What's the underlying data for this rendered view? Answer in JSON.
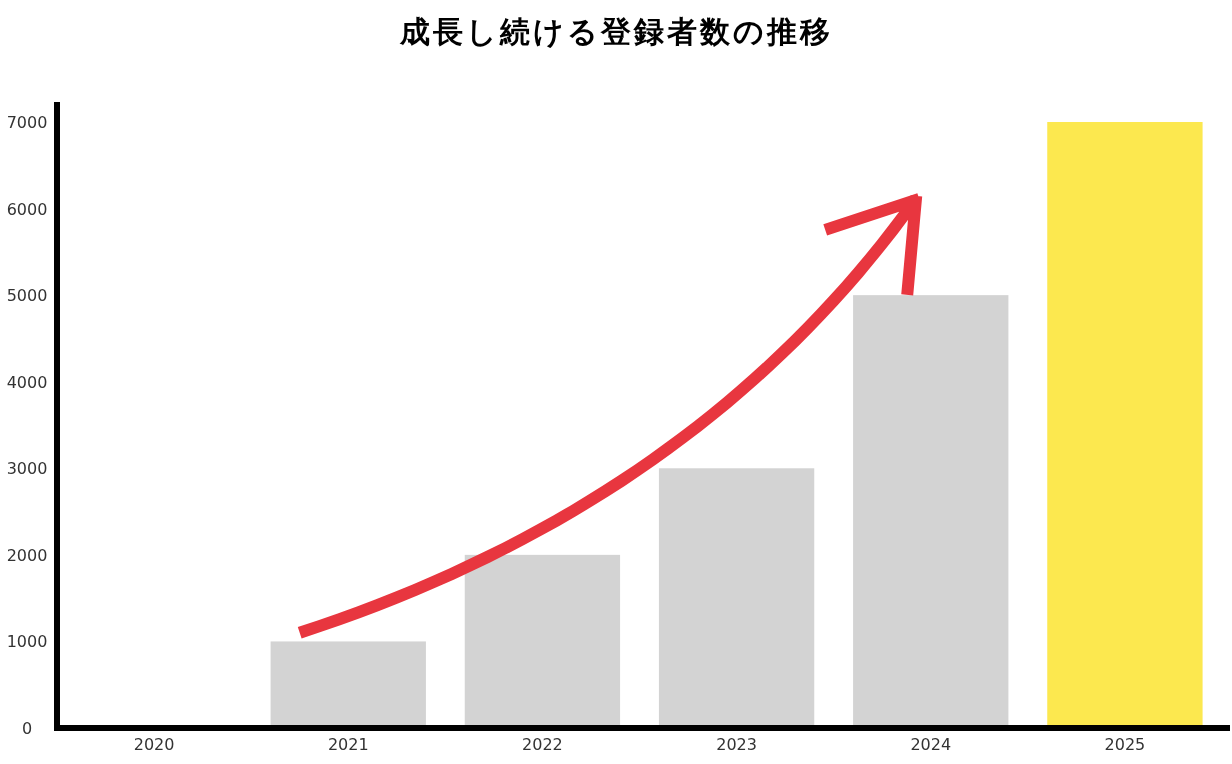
{
  "chart_data": {
    "type": "bar",
    "title": "成長し続ける登録者数の推移",
    "categories": [
      "2020",
      "2021",
      "2022",
      "2023",
      "2024",
      "2025"
    ],
    "values": [
      0,
      1000,
      2000,
      3000,
      5000,
      7000
    ],
    "colors": [
      "#d3d3d3",
      "#d3d3d3",
      "#d3d3d3",
      "#d3d3d3",
      "#d3d3d3",
      "#fce84f"
    ],
    "ylim": [
      0,
      7000
    ],
    "yticks": [
      0,
      1000,
      2000,
      3000,
      4000,
      5000,
      6000,
      7000
    ],
    "grid": false
  }
}
